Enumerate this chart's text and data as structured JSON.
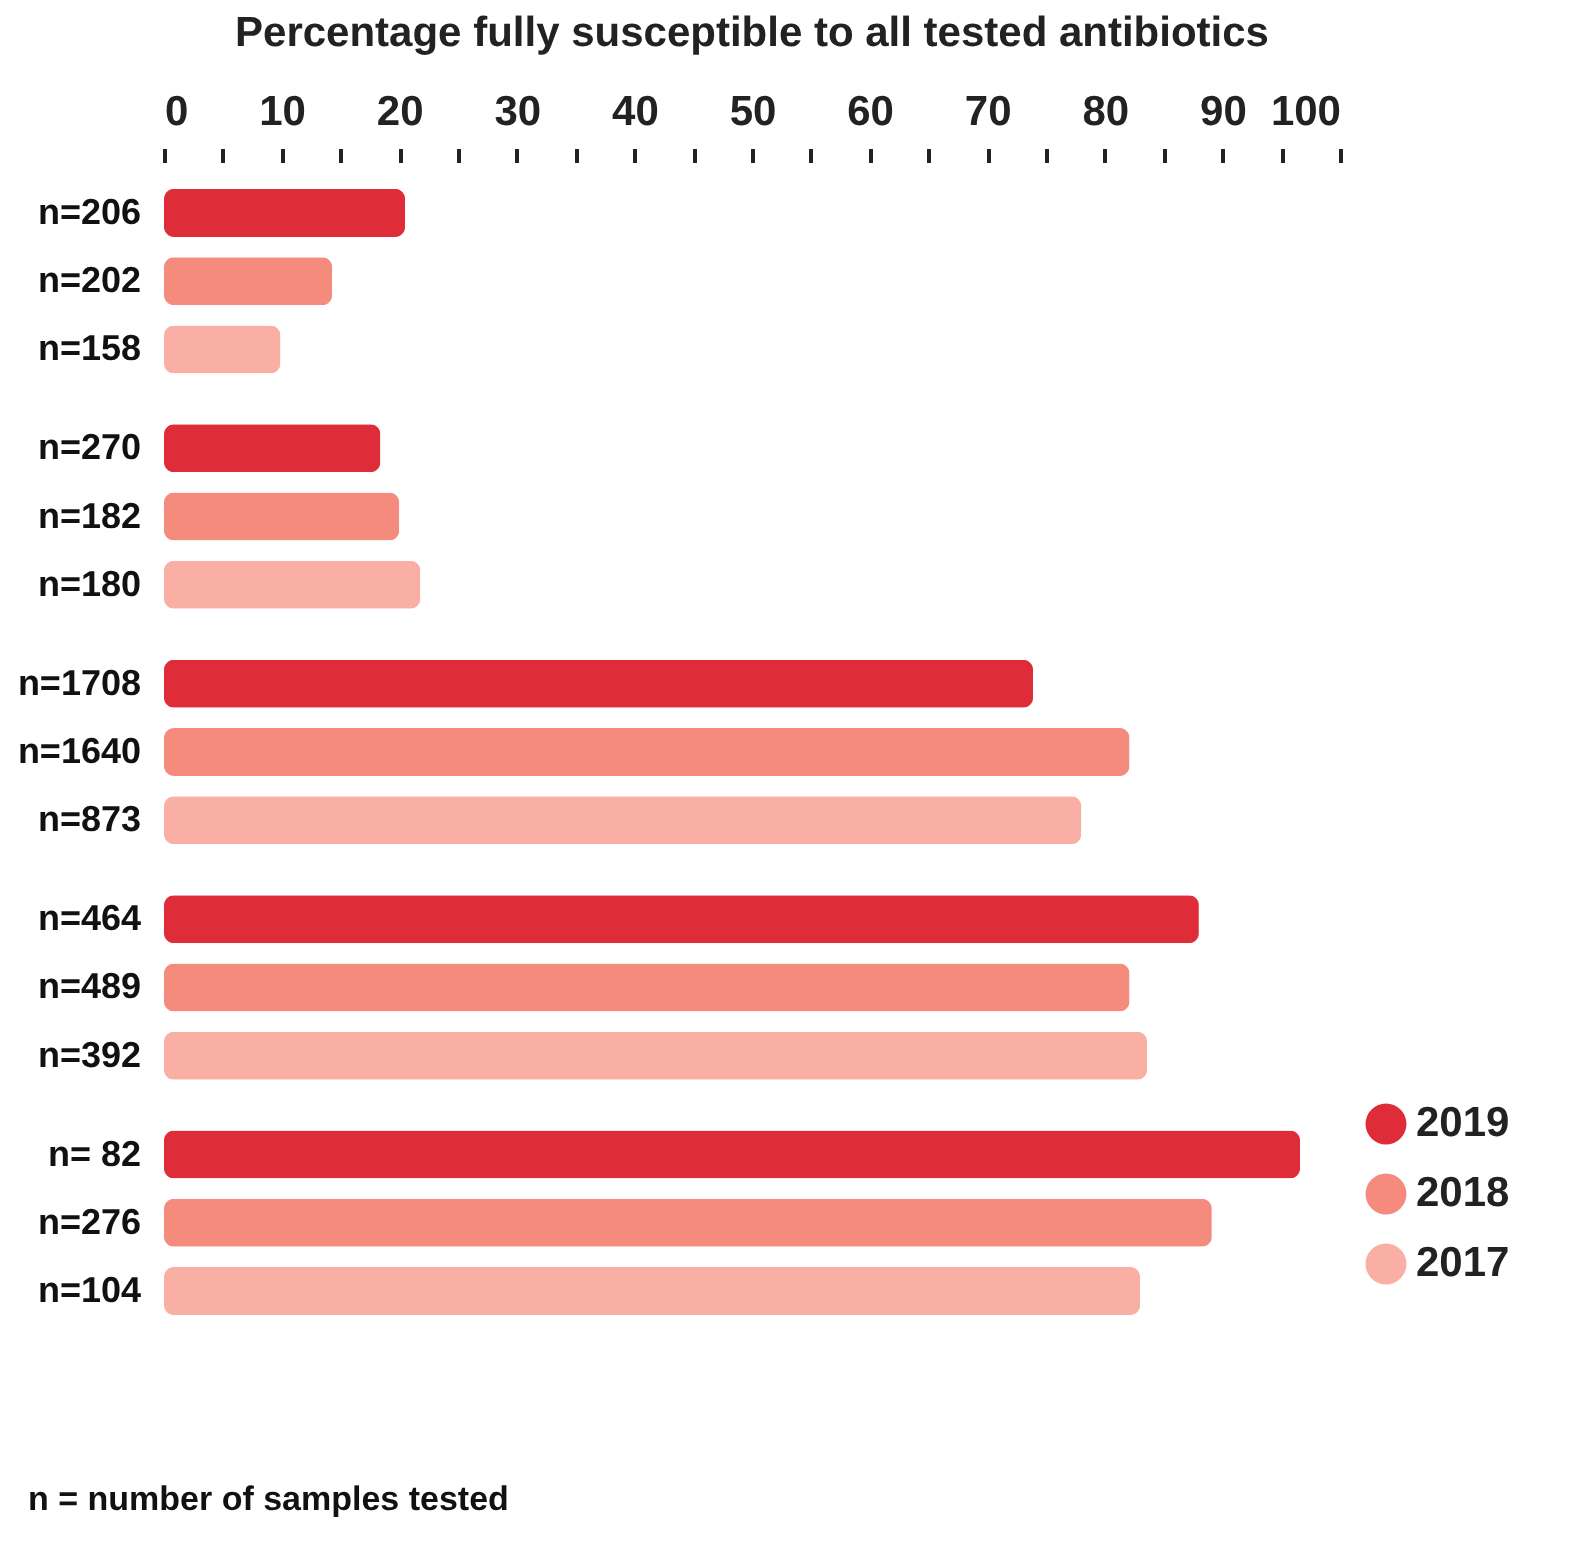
{
  "chart_data": {
    "type": "bar",
    "orientation": "horizontal",
    "title": "Percentage fully susceptible to all tested antibiotics",
    "categories": [
      "n=206",
      "n=202",
      "n=158",
      "n=270",
      "n=182",
      "n=180",
      "n=1708",
      "n=1640",
      "n=873",
      "n=464",
      "n=489",
      "n=392",
      "n= 82",
      "n=276",
      "n=104"
    ],
    "series": [
      {
        "name": "2019",
        "color": "#df2c39",
        "values": [
          20.5,
          null,
          null,
          18.4,
          null,
          null,
          73.9,
          null,
          null,
          88.0,
          null,
          null,
          96.6,
          null,
          null
        ]
      },
      {
        "name": "2018",
        "color": "#f48b7d",
        "values": [
          null,
          14.3,
          null,
          null,
          20.0,
          null,
          null,
          82.1,
          null,
          null,
          82.1,
          null,
          null,
          89.1,
          null
        ]
      },
      {
        "name": "2017",
        "color": "#f9afa4",
        "values": [
          null,
          null,
          9.9,
          null,
          null,
          21.8,
          null,
          null,
          78.0,
          null,
          null,
          83.6,
          null,
          null,
          83.0
        ]
      }
    ],
    "xlim": [
      0,
      100
    ],
    "xticks": [
      0,
      {
        "value": 5,
        "label": null
      },
      10,
      {
        "value": 15,
        "label": null
      },
      20,
      {
        "value": 25,
        "label": null
      },
      30,
      {
        "value": 35,
        "label": null
      },
      40,
      {
        "value": 45,
        "label": null
      },
      50,
      {
        "value": 55,
        "label": null
      },
      60,
      {
        "value": 65,
        "label": null
      },
      70,
      {
        "value": 75,
        "label": null
      },
      80,
      {
        "value": 85,
        "label": null
      },
      90,
      {
        "value": 95,
        "label": null
      },
      100
    ],
    "legend": "bottom right",
    "annotations": [
      "n = number of samples tested"
    ]
  }
}
